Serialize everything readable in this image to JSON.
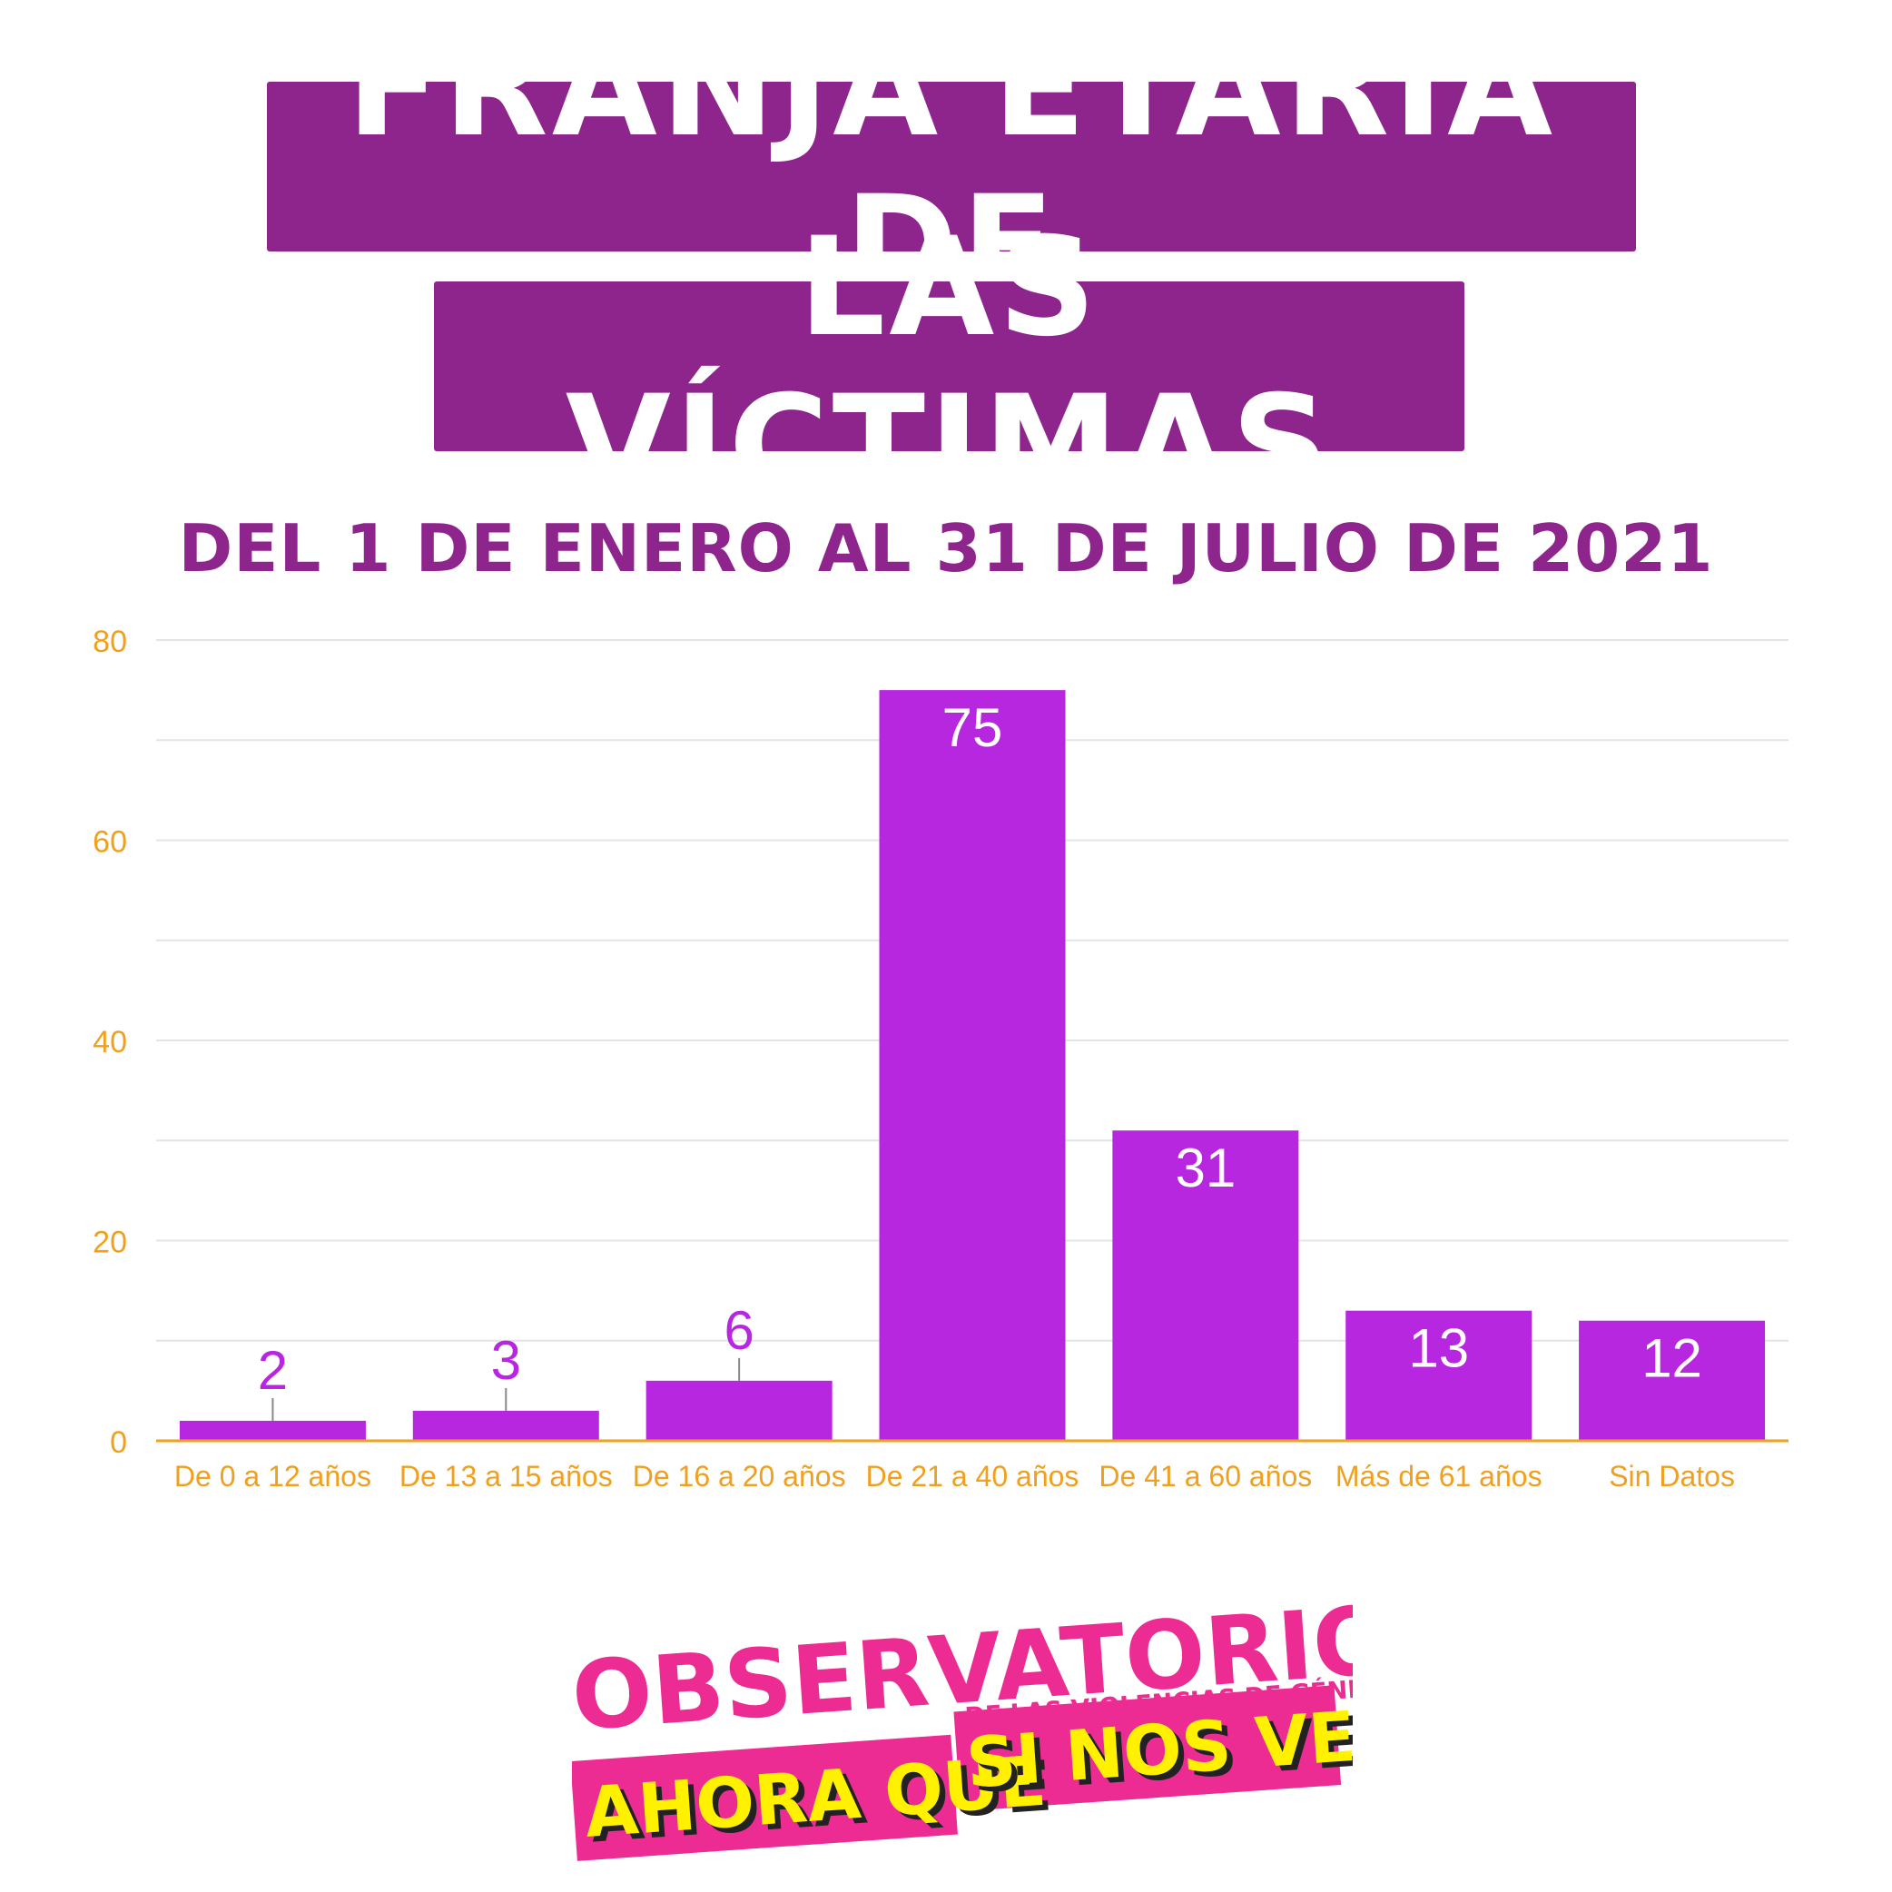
{
  "header": {
    "title_line1": "FRANJA ETARIA DE",
    "title_line2": "LAS VÍCTIMAS",
    "subtitle": "DEL 1 DE ENERO AL 31 DE JULIO DE 2021"
  },
  "colors": {
    "bar": "#b827e0",
    "title_bg": "#8e258d",
    "axis": "#f0a01e",
    "logo_pink": "#ec2c93",
    "logo_yellow": "#fff100"
  },
  "chart_data": {
    "type": "bar",
    "title": "",
    "xlabel": "",
    "ylabel": "",
    "categories": [
      "De 0 a 12 años",
      "De 13 a 15 años",
      "De 16 a 20 años",
      "De 21 a 40 años",
      "De 41 a 60 años",
      "Más de 61 años",
      "Sin Datos"
    ],
    "values": [
      2,
      3,
      6,
      75,
      31,
      13,
      12
    ],
    "ylim": [
      0,
      80
    ],
    "yticks": [
      0,
      20,
      40,
      60,
      80
    ],
    "grid": true,
    "legend": "none"
  },
  "logo": {
    "line1": "OBSERVATORIO",
    "line2": "DE LAS VIOLENCIAS DE GÉNERO",
    "line3a": "AHORA QUE",
    "line3b": "SI NOS VEN"
  }
}
